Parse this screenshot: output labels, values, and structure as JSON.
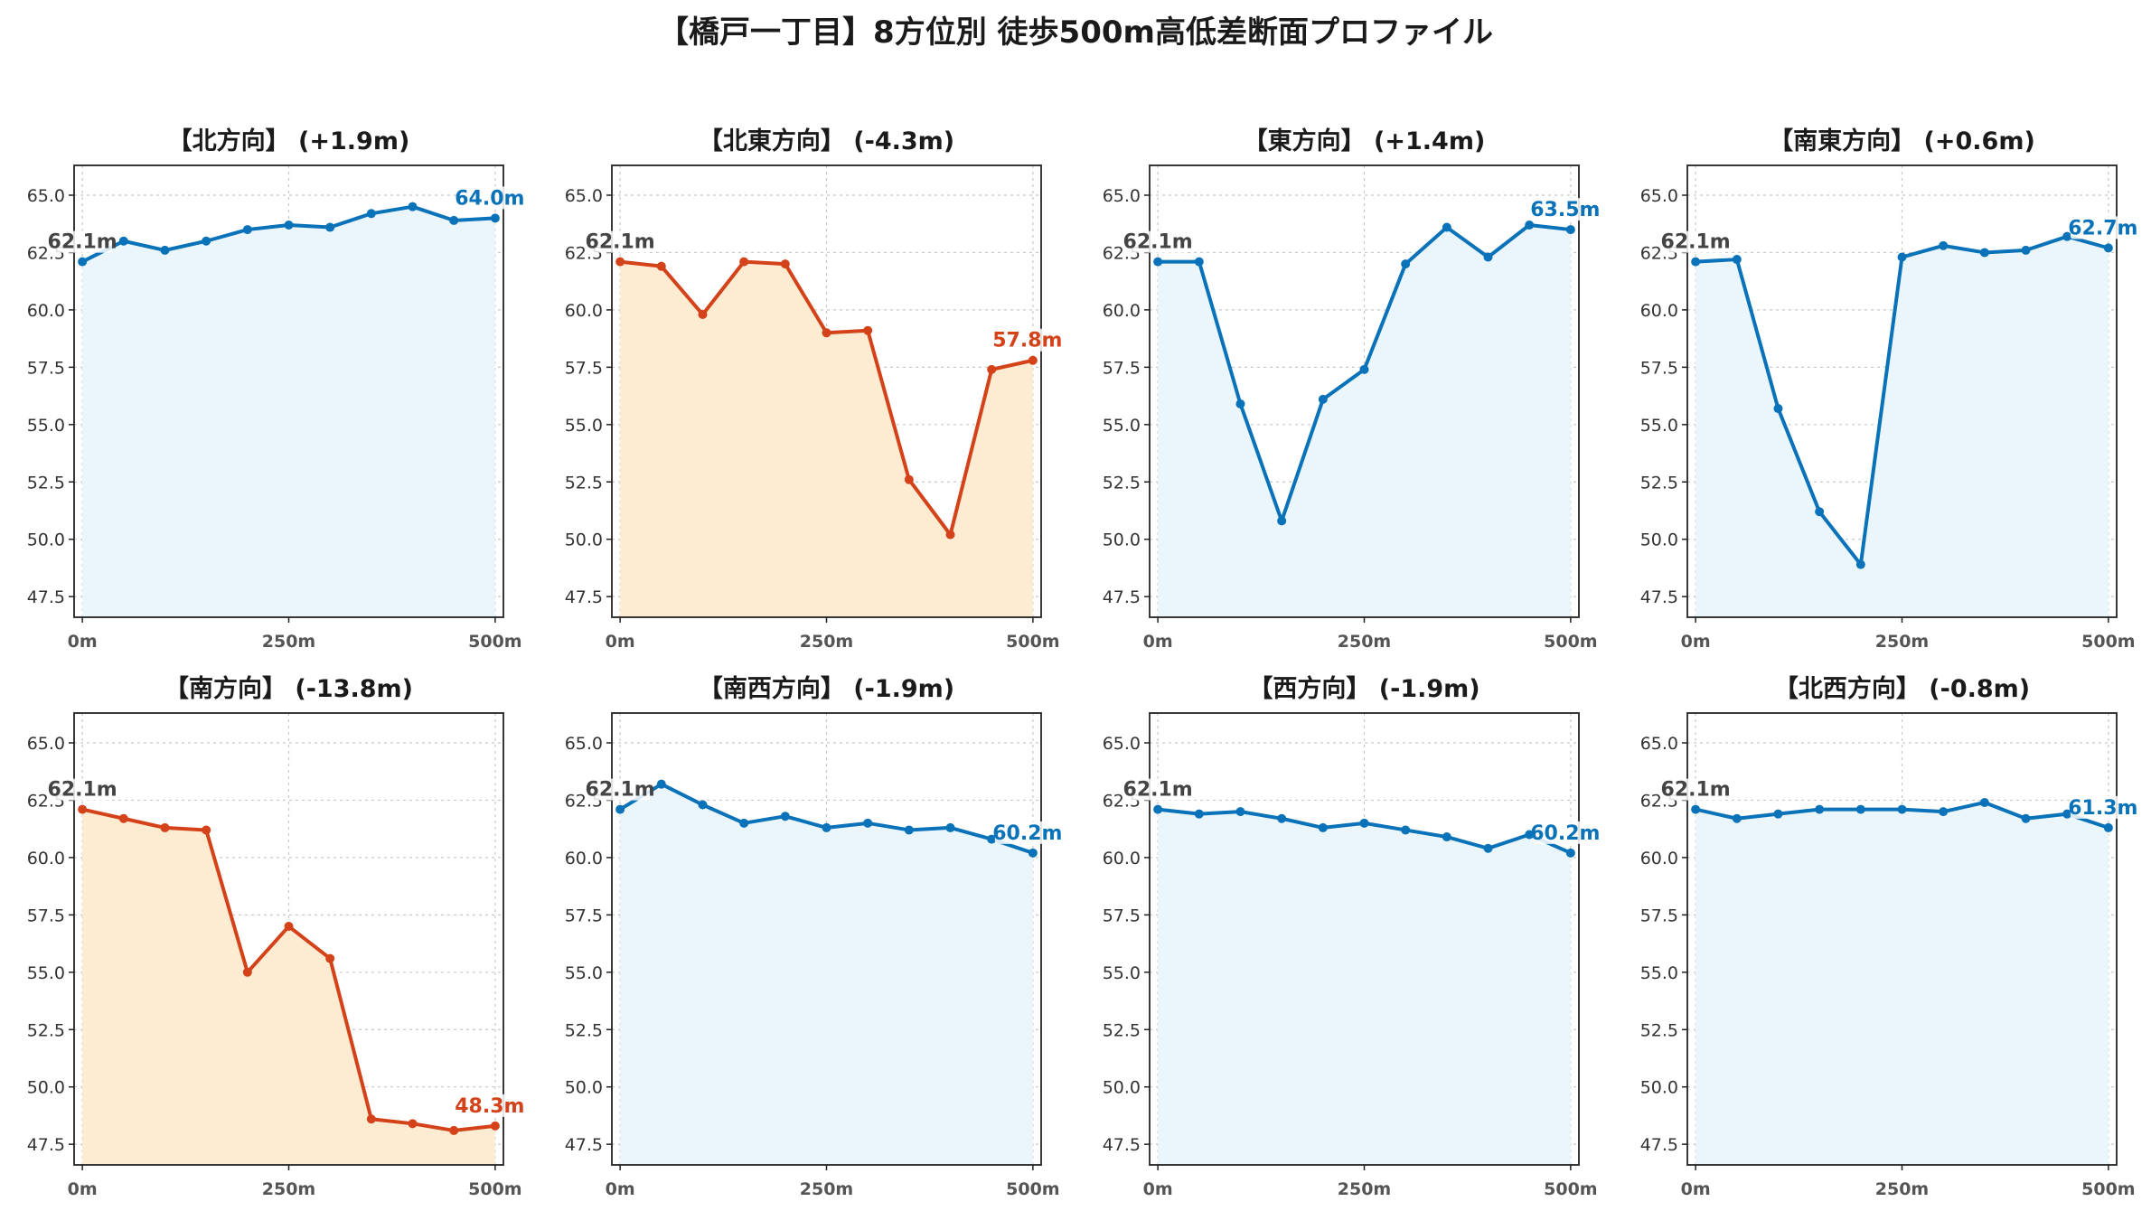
{
  "title": "【橋戸一丁目】8方位別 徒歩500m高低差断面プロファイル",
  "colors": {
    "up": "#0a72b8",
    "down": "#d4421a",
    "up_fill": "#eaf6fc",
    "down_fill": "#fdebd2",
    "grid": "#c8c8c8",
    "start_label": "#444444"
  },
  "chart_data": [
    {
      "type": "line",
      "direction": "北方向",
      "title": "【北方向】 (+1.9m)",
      "trend": "up",
      "x": [
        0,
        50,
        100,
        150,
        200,
        250,
        300,
        350,
        400,
        450,
        500
      ],
      "values": [
        62.1,
        63.0,
        62.6,
        63.0,
        63.5,
        63.7,
        63.6,
        64.2,
        64.5,
        63.9,
        64.0
      ],
      "start_label": "62.1m",
      "end_label": "64.0m",
      "xticks": [
        "0m",
        "250m",
        "500m"
      ],
      "yticks": [
        "47.5",
        "50.0",
        "52.5",
        "55.0",
        "57.5",
        "60.0",
        "62.5",
        "65.0"
      ],
      "ylim": [
        46.6,
        66.3
      ],
      "xlim": [
        -10,
        510
      ],
      "grid": true
    },
    {
      "type": "line",
      "direction": "北東方向",
      "title": "【北東方向】 (-4.3m)",
      "trend": "down",
      "x": [
        0,
        50,
        100,
        150,
        200,
        250,
        300,
        350,
        400,
        450,
        500
      ],
      "values": [
        62.1,
        61.9,
        59.8,
        62.1,
        62.0,
        59.0,
        59.1,
        52.6,
        50.2,
        57.4,
        57.8
      ],
      "start_label": "62.1m",
      "end_label": "57.8m",
      "xticks": [
        "0m",
        "250m",
        "500m"
      ],
      "yticks": [
        "47.5",
        "50.0",
        "52.5",
        "55.0",
        "57.5",
        "60.0",
        "62.5",
        "65.0"
      ],
      "ylim": [
        46.6,
        66.3
      ],
      "xlim": [
        -10,
        510
      ],
      "grid": true
    },
    {
      "type": "line",
      "direction": "東方向",
      "title": "【東方向】 (+1.4m)",
      "trend": "up",
      "x": [
        0,
        50,
        100,
        150,
        200,
        250,
        300,
        350,
        400,
        450,
        500
      ],
      "values": [
        62.1,
        62.1,
        55.9,
        50.8,
        56.1,
        57.4,
        62.0,
        63.6,
        62.3,
        63.7,
        63.5
      ],
      "start_label": "62.1m",
      "end_label": "63.5m",
      "xticks": [
        "0m",
        "250m",
        "500m"
      ],
      "yticks": [
        "47.5",
        "50.0",
        "52.5",
        "55.0",
        "57.5",
        "60.0",
        "62.5",
        "65.0"
      ],
      "ylim": [
        46.6,
        66.3
      ],
      "xlim": [
        -10,
        510
      ],
      "grid": true
    },
    {
      "type": "line",
      "direction": "南東方向",
      "title": "【南東方向】 (+0.6m)",
      "trend": "up",
      "x": [
        0,
        50,
        100,
        150,
        200,
        250,
        300,
        350,
        400,
        450,
        500
      ],
      "values": [
        62.1,
        62.2,
        55.7,
        51.2,
        48.9,
        62.3,
        62.8,
        62.5,
        62.6,
        63.2,
        62.7
      ],
      "start_label": "62.1m",
      "end_label": "62.7m",
      "xticks": [
        "0m",
        "250m",
        "500m"
      ],
      "yticks": [
        "47.5",
        "50.0",
        "52.5",
        "55.0",
        "57.5",
        "60.0",
        "62.5",
        "65.0"
      ],
      "ylim": [
        46.6,
        66.3
      ],
      "xlim": [
        -10,
        510
      ],
      "grid": true
    },
    {
      "type": "line",
      "direction": "南方向",
      "title": "【南方向】 (-13.8m)",
      "trend": "down",
      "x": [
        0,
        50,
        100,
        150,
        200,
        250,
        300,
        350,
        400,
        450,
        500
      ],
      "values": [
        62.1,
        61.7,
        61.3,
        61.2,
        55.0,
        57.0,
        55.6,
        48.6,
        48.4,
        48.1,
        48.3
      ],
      "start_label": "62.1m",
      "end_label": "48.3m",
      "xticks": [
        "0m",
        "250m",
        "500m"
      ],
      "yticks": [
        "47.5",
        "50.0",
        "52.5",
        "55.0",
        "57.5",
        "60.0",
        "62.5",
        "65.0"
      ],
      "ylim": [
        46.6,
        66.3
      ],
      "xlim": [
        -10,
        510
      ],
      "grid": true
    },
    {
      "type": "line",
      "direction": "南西方向",
      "title": "【南西方向】 (-1.9m)",
      "trend": "up",
      "x": [
        0,
        50,
        100,
        150,
        200,
        250,
        300,
        350,
        400,
        450,
        500
      ],
      "values": [
        62.1,
        63.2,
        62.3,
        61.5,
        61.8,
        61.3,
        61.5,
        61.2,
        61.3,
        60.8,
        60.2
      ],
      "start_label": "62.1m",
      "end_label": "60.2m",
      "xticks": [
        "0m",
        "250m",
        "500m"
      ],
      "yticks": [
        "47.5",
        "50.0",
        "52.5",
        "55.0",
        "57.5",
        "60.0",
        "62.5",
        "65.0"
      ],
      "ylim": [
        46.6,
        66.3
      ],
      "xlim": [
        -10,
        510
      ],
      "grid": true
    },
    {
      "type": "line",
      "direction": "西方向",
      "title": "【西方向】 (-1.9m)",
      "trend": "up",
      "x": [
        0,
        50,
        100,
        150,
        200,
        250,
        300,
        350,
        400,
        450,
        500
      ],
      "values": [
        62.1,
        61.9,
        62.0,
        61.7,
        61.3,
        61.5,
        61.2,
        60.9,
        60.4,
        61.0,
        60.2
      ],
      "start_label": "62.1m",
      "end_label": "60.2m",
      "xticks": [
        "0m",
        "250m",
        "500m"
      ],
      "yticks": [
        "47.5",
        "50.0",
        "52.5",
        "55.0",
        "57.5",
        "60.0",
        "62.5",
        "65.0"
      ],
      "ylim": [
        46.6,
        66.3
      ],
      "xlim": [
        -10,
        510
      ],
      "grid": true
    },
    {
      "type": "line",
      "direction": "北西方向",
      "title": "【北西方向】 (-0.8m)",
      "trend": "up",
      "x": [
        0,
        50,
        100,
        150,
        200,
        250,
        300,
        350,
        400,
        450,
        500
      ],
      "values": [
        62.1,
        61.7,
        61.9,
        62.1,
        62.1,
        62.1,
        62.0,
        62.4,
        61.7,
        61.9,
        61.3
      ],
      "start_label": "62.1m",
      "end_label": "61.3m",
      "xticks": [
        "0m",
        "250m",
        "500m"
      ],
      "yticks": [
        "47.5",
        "50.0",
        "52.5",
        "55.0",
        "57.5",
        "60.0",
        "62.5",
        "65.0"
      ],
      "ylim": [
        46.6,
        66.3
      ],
      "xlim": [
        -10,
        510
      ],
      "grid": true
    }
  ]
}
